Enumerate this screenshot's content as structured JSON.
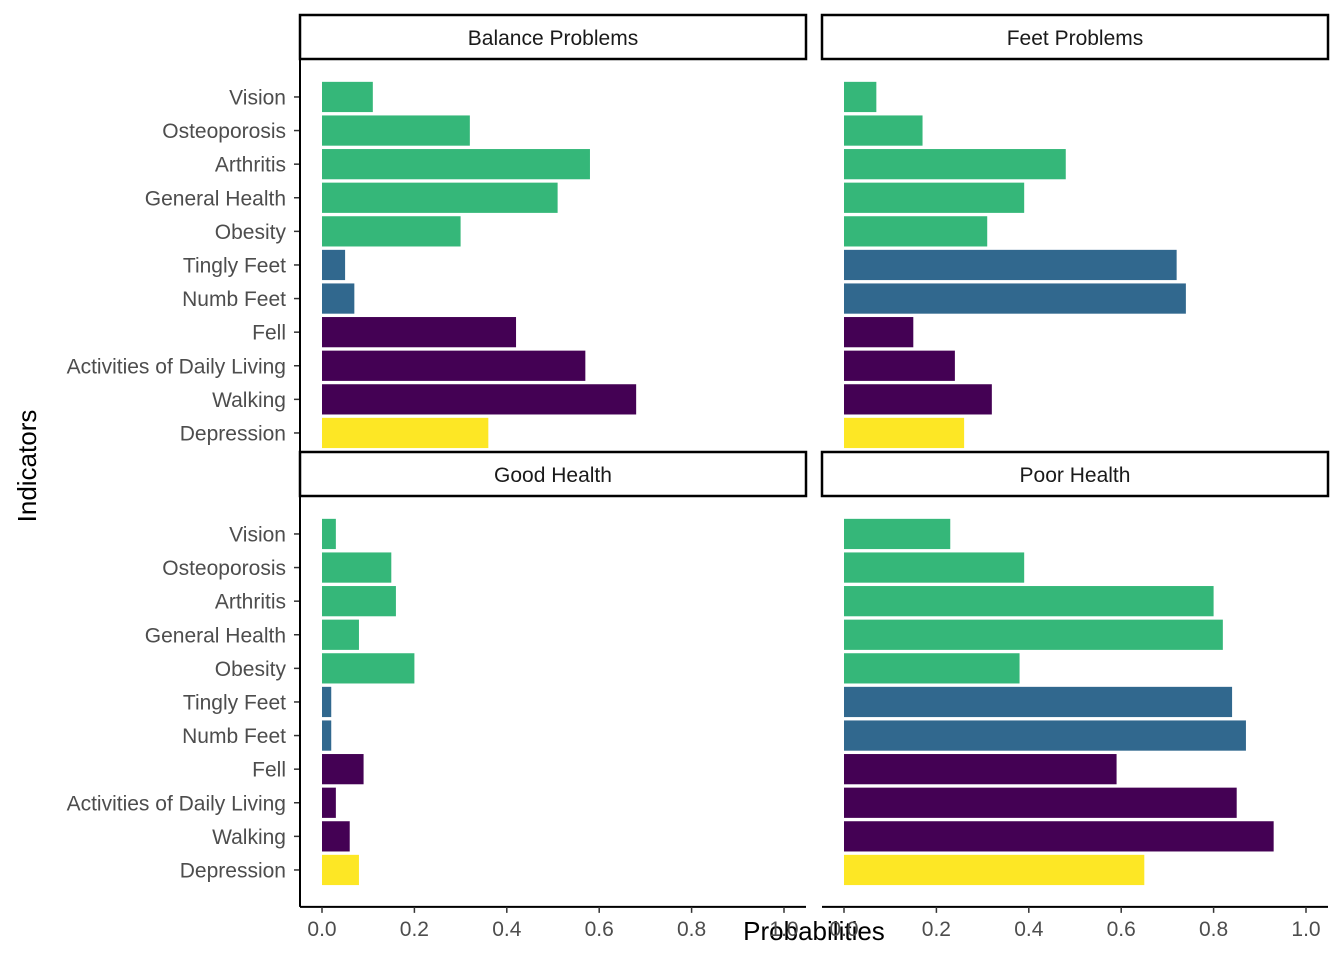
{
  "chart_data": {
    "type": "bar",
    "orientation": "horizontal",
    "xlabel": "Probabilities",
    "ylabel": "Indicators",
    "xlim": [
      0,
      1.0
    ],
    "x_ticks": [
      "0.0",
      "0.2",
      "0.4",
      "0.6",
      "0.8",
      "1.0"
    ],
    "grid": false,
    "categories": [
      "Vision",
      "Osteoporosis",
      "Arthritis",
      "General Health",
      "Obesity",
      "Tingly Feet",
      "Numb Feet",
      "Fell",
      "Activities of Daily Living",
      "Walking",
      "Depression"
    ],
    "category_colors": [
      "#35b779",
      "#35b779",
      "#35b779",
      "#35b779",
      "#35b779",
      "#31688e",
      "#31688e",
      "#440154",
      "#440154",
      "#440154",
      "#fde725"
    ],
    "panels": [
      {
        "title": "Balance Problems",
        "values": [
          0.11,
          0.32,
          0.58,
          0.51,
          0.3,
          0.05,
          0.07,
          0.42,
          0.57,
          0.68,
          0.36
        ]
      },
      {
        "title": "Feet Problems",
        "values": [
          0.07,
          0.17,
          0.48,
          0.39,
          0.31,
          0.72,
          0.74,
          0.15,
          0.24,
          0.32,
          0.26
        ]
      },
      {
        "title": "Good Health",
        "values": [
          0.03,
          0.15,
          0.16,
          0.08,
          0.2,
          0.02,
          0.02,
          0.09,
          0.03,
          0.06,
          0.08
        ]
      },
      {
        "title": "Poor Health",
        "values": [
          0.23,
          0.39,
          0.8,
          0.82,
          0.38,
          0.84,
          0.87,
          0.59,
          0.85,
          0.93,
          0.65
        ]
      }
    ]
  }
}
